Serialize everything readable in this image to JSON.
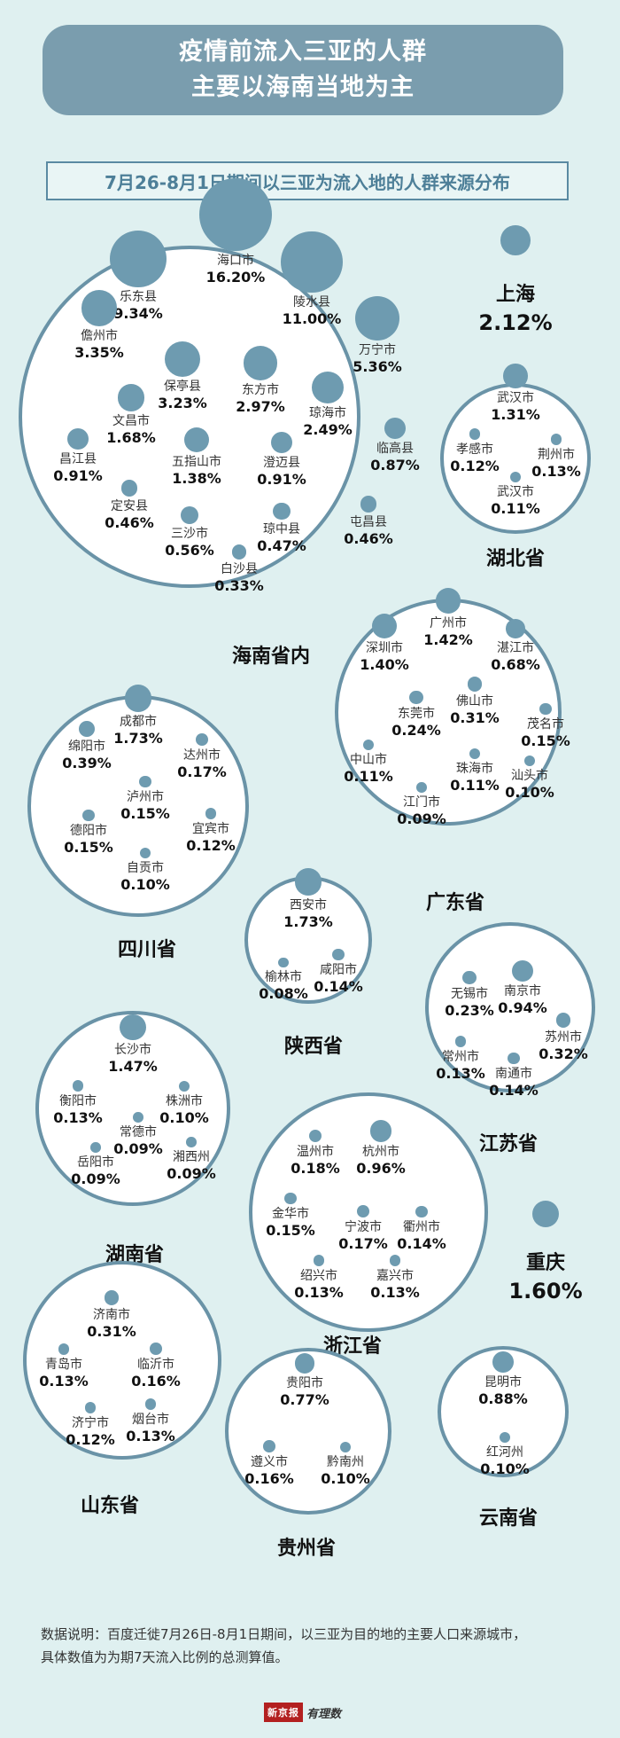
{
  "header": {
    "title_line1": "疫情前流入三亚的人群",
    "title_line2": "主要以海南当地为主"
  },
  "subtitle": "7月26-8月1日期间以三亚为流入地的人群来源分布",
  "colors": {
    "background": "#dff0f0",
    "accent": "#6e9bb0",
    "banner": "#7a9dae"
  },
  "chart_data": {
    "type": "bubble",
    "unit": "%",
    "groups": [
      {
        "name": "海南省内",
        "cities": [
          {
            "name": "海口市",
            "value": 16.2
          },
          {
            "name": "乐东县",
            "value": 9.34
          },
          {
            "name": "陵水县",
            "value": 11.0
          },
          {
            "name": "儋州市",
            "value": 3.35
          },
          {
            "name": "万宁市",
            "value": 5.36
          },
          {
            "name": "保亭县",
            "value": 3.23
          },
          {
            "name": "东方市",
            "value": 2.97
          },
          {
            "name": "琼海市",
            "value": 2.49
          },
          {
            "name": "文昌市",
            "value": 1.68
          },
          {
            "name": "昌江县",
            "value": 0.91
          },
          {
            "name": "五指山市",
            "value": 1.38
          },
          {
            "name": "澄迈县",
            "value": 0.91
          },
          {
            "name": "临高县",
            "value": 0.87
          },
          {
            "name": "定安县",
            "value": 0.46
          },
          {
            "name": "屯昌县",
            "value": 0.46
          },
          {
            "name": "三沙市",
            "value": 0.56
          },
          {
            "name": "琼中县",
            "value": 0.47
          },
          {
            "name": "白沙县",
            "value": 0.33
          }
        ]
      },
      {
        "name": "上海",
        "value": 2.12
      },
      {
        "name": "湖北省",
        "cities": [
          {
            "name": "武汉市",
            "value": 1.31
          },
          {
            "name": "孝感市",
            "value": 0.12
          },
          {
            "name": "荆州市",
            "value": 0.13
          },
          {
            "name": "武汉市",
            "value": 0.11
          }
        ]
      },
      {
        "name": "广东省",
        "cities": [
          {
            "name": "广州市",
            "value": 1.42
          },
          {
            "name": "深圳市",
            "value": 1.4
          },
          {
            "name": "湛江市",
            "value": 0.68
          },
          {
            "name": "佛山市",
            "value": 0.31
          },
          {
            "name": "东莞市",
            "value": 0.24
          },
          {
            "name": "茂名市",
            "value": 0.15
          },
          {
            "name": "中山市",
            "value": 0.11
          },
          {
            "name": "珠海市",
            "value": 0.11
          },
          {
            "name": "汕头市",
            "value": 0.1
          },
          {
            "name": "江门市",
            "value": 0.09
          }
        ]
      },
      {
        "name": "四川省",
        "cities": [
          {
            "name": "成都市",
            "value": 1.73
          },
          {
            "name": "绵阳市",
            "value": 0.39
          },
          {
            "name": "达州市",
            "value": 0.17
          },
          {
            "name": "泸州市",
            "value": 0.15
          },
          {
            "name": "德阳市",
            "value": 0.15
          },
          {
            "name": "宜宾市",
            "value": 0.12
          },
          {
            "name": "自贡市",
            "value": 0.1
          }
        ]
      },
      {
        "name": "陕西省",
        "cities": [
          {
            "name": "西安市",
            "value": 1.73
          },
          {
            "name": "榆林市",
            "value": 0.08
          },
          {
            "name": "咸阳市",
            "value": 0.14
          }
        ]
      },
      {
        "name": "江苏省",
        "cities": [
          {
            "name": "南京市",
            "value": 0.94
          },
          {
            "name": "无锡市",
            "value": 0.23
          },
          {
            "name": "苏州市",
            "value": 0.32
          },
          {
            "name": "常州市",
            "value": 0.13
          },
          {
            "name": "南通市",
            "value": 0.14
          }
        ]
      },
      {
        "name": "湖南省",
        "cities": [
          {
            "name": "长沙市",
            "value": 1.47
          },
          {
            "name": "衡阳市",
            "value": 0.13
          },
          {
            "name": "株洲市",
            "value": 0.1
          },
          {
            "name": "常德市",
            "value": 0.09
          },
          {
            "name": "岳阳市",
            "value": 0.09
          },
          {
            "name": "湘西州",
            "value": 0.09
          }
        ]
      },
      {
        "name": "浙江省",
        "cities": [
          {
            "name": "杭州市",
            "value": 0.96
          },
          {
            "name": "温州市",
            "value": 0.18
          },
          {
            "name": "金华市",
            "value": 0.15
          },
          {
            "name": "宁波市",
            "value": 0.17
          },
          {
            "name": "衢州市",
            "value": 0.14
          },
          {
            "name": "绍兴市",
            "value": 0.13
          },
          {
            "name": "嘉兴市",
            "value": 0.13
          }
        ]
      },
      {
        "name": "重庆",
        "value": 1.6
      },
      {
        "name": "山东省",
        "cities": [
          {
            "name": "济南市",
            "value": 0.31
          },
          {
            "name": "青岛市",
            "value": 0.13
          },
          {
            "name": "临沂市",
            "value": 0.16
          },
          {
            "name": "济宁市",
            "value": 0.12
          },
          {
            "name": "烟台市",
            "value": 0.13
          }
        ]
      },
      {
        "name": "贵州省",
        "cities": [
          {
            "name": "贵阳市",
            "value": 0.77
          },
          {
            "name": "遵义市",
            "value": 0.16
          },
          {
            "name": "黔南州",
            "value": 0.1
          }
        ]
      },
      {
        "name": "云南省",
        "cities": [
          {
            "name": "昆明市",
            "value": 0.88
          },
          {
            "name": "红河州",
            "value": 0.1
          }
        ]
      }
    ]
  },
  "footnote": {
    "line1": "数据说明：百度迁徙7月26日-8月1日期间，以三亚为目的地的主要人口来源城市，",
    "line2": "具体数值为为期7天流入比例的总测算值。"
  },
  "logo": {
    "brand": "新京报",
    "sub": "有理数"
  }
}
